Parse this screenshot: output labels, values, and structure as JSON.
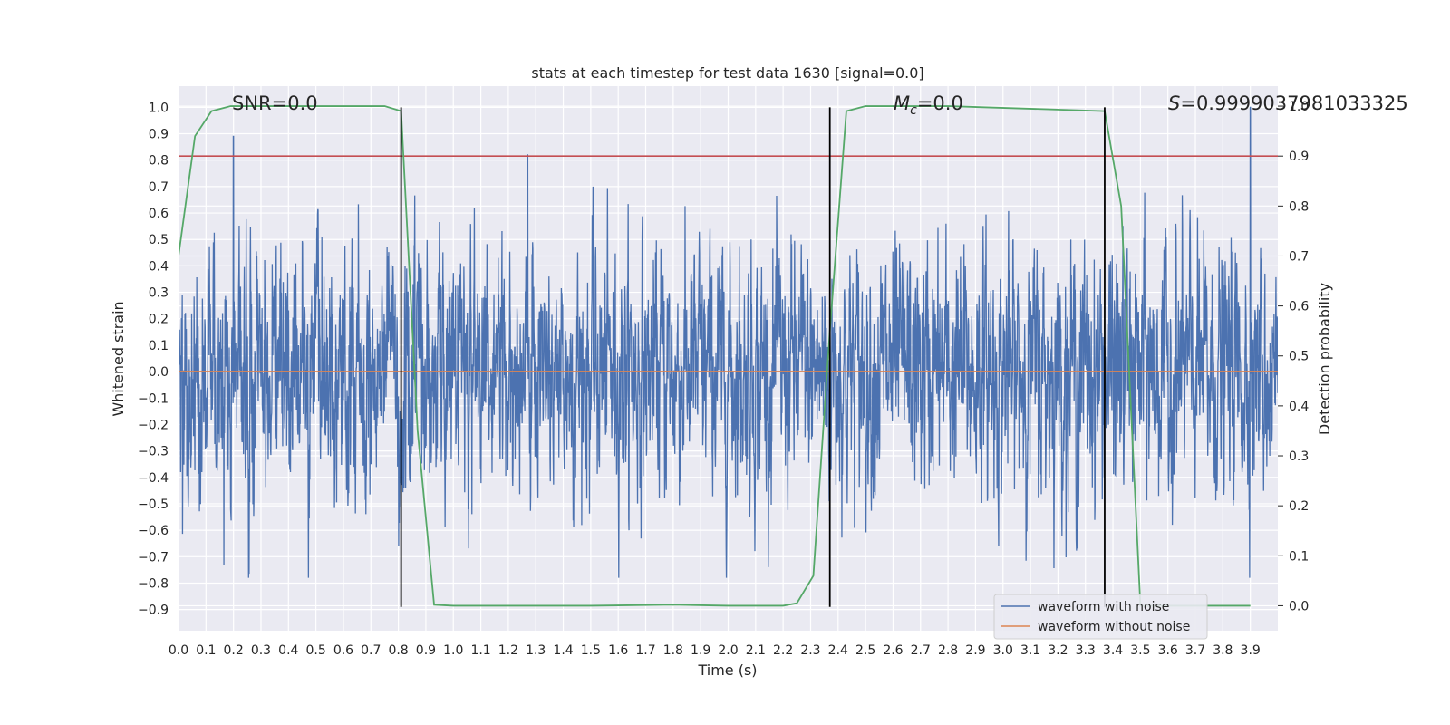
{
  "chart_data": {
    "type": "line",
    "title": "stats at each timestep for test data 1630 [signal=0.0]",
    "xlabel": "Time (s)",
    "ylabel": "Whitened strain",
    "ylabel_right": "Detection probability",
    "xlim": [
      0.0,
      4.0
    ],
    "ylim": [
      -0.98,
      1.08
    ],
    "ylim_right": [
      -0.05,
      1.04
    ],
    "grid": true,
    "background": "#eaeaf2",
    "x_ticks": [
      0.0,
      0.1,
      0.2,
      0.3,
      0.4,
      0.5,
      0.6,
      0.7,
      0.8,
      0.9,
      1.0,
      1.1,
      1.2,
      1.3,
      1.4,
      1.5,
      1.6,
      1.7,
      1.8,
      1.9,
      2.0,
      2.1,
      2.2,
      2.3,
      2.4,
      2.5,
      2.6,
      2.7,
      2.8,
      2.9,
      3.0,
      3.1,
      3.2,
      3.3,
      3.4,
      3.5,
      3.6,
      3.7,
      3.8,
      3.9
    ],
    "y_ticks": [
      1.0,
      0.9,
      0.8,
      0.7,
      0.6,
      0.5,
      0.4,
      0.3,
      0.2,
      0.1,
      0.0,
      -0.1,
      -0.2,
      -0.3,
      -0.4,
      -0.5,
      -0.6,
      -0.7,
      -0.8,
      -0.9
    ],
    "y_ticks_right": [
      1.0,
      0.9,
      0.8,
      0.7,
      0.6,
      0.5,
      0.4,
      0.3,
      0.2,
      0.1,
      0.0
    ],
    "annotations": {
      "snr": "SNR=0.0",
      "mc_symbol": "M",
      "mc_sub": "c",
      "mc_value": "=0.0",
      "s_symbol": "S",
      "s_value": "=0.9999037981033325"
    },
    "legend": {
      "placement": "lower-right",
      "entries": [
        "waveform with noise",
        "waveform without noise"
      ]
    },
    "series": [
      {
        "name": "waveform with noise",
        "color": "#4c72b0",
        "kind": "noise",
        "n": 4096,
        "typical_range": [
          -0.5,
          0.6
        ],
        "peaks": [
          [
            0.2,
            0.89
          ],
          [
            1.27,
            0.82
          ],
          [
            3.9,
            1.0
          ]
        ]
      },
      {
        "name": "waveform without noise",
        "color": "#dd8452",
        "x": [
          0.0,
          4.0
        ],
        "y": [
          0.0,
          0.0
        ]
      },
      {
        "color": "#55a868",
        "axis": "right",
        "x": [
          0.0,
          0.06,
          0.12,
          0.19,
          0.25,
          0.3,
          0.5,
          0.75,
          0.81,
          0.87,
          0.93,
          1.0,
          1.5,
          1.8,
          2.0,
          2.2,
          2.25,
          2.31,
          2.37,
          2.43,
          2.5,
          2.8,
          3.37,
          3.43,
          3.5,
          3.6,
          3.9
        ],
        "y": [
          0.7,
          0.94,
          0.99,
          1.0,
          1.0,
          1.0,
          1.0,
          1.0,
          0.99,
          0.35,
          0.002,
          0.0,
          0.0,
          0.002,
          0.0,
          0.0,
          0.005,
          0.06,
          0.55,
          0.99,
          1.0,
          1.0,
          0.99,
          0.8,
          0.0,
          0.0,
          0.0
        ]
      },
      {
        "color": "#c44e52",
        "axis": "right",
        "kind": "threshold",
        "value": 0.9
      }
    ],
    "vertical_markers": [
      0.81,
      2.37,
      3.37
    ],
    "vertical_marker_range": [
      -0.89,
      1.0
    ]
  }
}
